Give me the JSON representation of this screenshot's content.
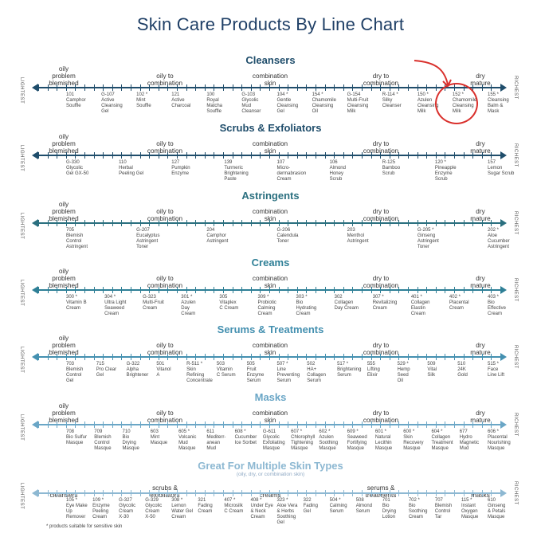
{
  "title": "Skin Care Products By Line Chart",
  "labels": {
    "left": "LIGHTEST",
    "right": "RICHEST"
  },
  "footnote": "* products suitable for sensitive skin",
  "colors": {
    "title": "#1f3f66",
    "cleansers": "#1f4d6b",
    "scrubs": "#1f4d6b",
    "astringents": "#2a6f7f",
    "creams": "#2e7f96",
    "serums": "#4490b0",
    "masks": "#6aa6c6",
    "multi": "#8db8d2",
    "highlight": "#d9302c"
  },
  "sections": [
    {
      "key": "cleansers",
      "title": "Cleansers",
      "cats": [
        "oily\nproblem\nblemished",
        "oily to\ncombination",
        "combination\nskin",
        "dry to\ncombination",
        "dry\nmature"
      ],
      "products": [
        "101\nCamphor\nSouffle",
        "G-107\nActive\nCleansing\nGel",
        "102 *\nMint\nSouffle",
        "121\nActive\nCharcoal",
        "100\nRoyal\nMatcha\nSouffle",
        "G-103\nGlycolic\nMud\nCleanser",
        "104 *\nGentle\nCleansing\nGel",
        "154 *\nChamomile\nCleansing\nOil",
        "G-154\nMulti-Fruit\nCleansing\nMilk",
        "R-114 *\nSilky\nCleanser",
        "150 *\nAzulen\nCleansing\nMilk",
        "152 *\nChamomile\nCleansing\nMilk",
        "155 *\nCleansing\nBalm &\nMask"
      ]
    },
    {
      "key": "scrubs",
      "title": "Scrubs & Exfoliators",
      "cats": [
        "oily\nproblem\nblemished",
        "oily to\ncombination",
        "combination\nskin",
        "dry to\ncombination",
        "dry\nmature"
      ],
      "products": [
        "G-330\nGlycolic\nGel GX-50",
        "110\nHerbal\nPeeling Gel",
        "127\nPumpkin\nEnzyme",
        "139\nTurmeric\nBrightening\nPaste",
        "107\nMicro-\ndermabrasion\nCream",
        "106\nAlmond\nHoney\nScrub",
        "R-125\nBamboo\nScrub",
        "120 *\nPineapple\nEnzyme\nScrub",
        "157\nLemon\nSugar Scrub"
      ]
    },
    {
      "key": "astringents",
      "title": "Astringents",
      "cats": [
        "oily\nproblem\nblemished",
        "oily to\ncombination",
        "combination\nskin",
        "dry to\ncombination",
        "dry\nmature"
      ],
      "products": [
        "705\nBlemish\nControl\nAstringent",
        "G-207\nEucalyptus\nAstringent\nToner",
        "204\nCamphor\nAstringent",
        "G-206\nCalendula\nToner",
        "203\nMenthol\nAstringent",
        "G-205 *\nGinseng\nAstringent\nToner",
        "202 *\nAloe\nCucumber\nAstringent"
      ]
    },
    {
      "key": "creams",
      "title": "Creams",
      "cats": [
        "oily\nproblem\nblemished",
        "oily to\ncombination",
        "combination\nskin",
        "dry to\ncombination",
        "dry\nmature"
      ],
      "products": [
        "300 *\nVitamin B\nCream",
        "304 *\nUltra Light\nSeaweed\nCream",
        "G-323\nMulti-Fruit\nCream",
        "301 *\nAzulen\nDay\nCream",
        "305\nVitaplex\nC Cream",
        "309 *\nProbiotic\nCalming\nCream",
        "303 *\nBio\nHydrating\nCream",
        "302\nCollagen\nDay Cream",
        "307 *\nRevitalizing\nCream",
        "401 *\nCollagen\nElastin\nCream",
        "402 *\nPlacental\nCream",
        "403 *\nBio\nEffective\nCream"
      ]
    },
    {
      "key": "serums",
      "title": "Serums & Treatments",
      "cats": [
        "oily\nproblem\nblemished",
        "oily to\ncombination",
        "combination\nskin",
        "dry to\ncombination",
        "dry\nmature"
      ],
      "products": [
        "703\nBlemish\nControl\nGel",
        "715\nPro Clear\nGel",
        "G-322\nAlpha\nBrightener",
        "501\nVitanol\nA",
        "R-511 *\nSkin\nRefining\nConcentrate",
        "503\nVitamin\nC Serum",
        "505\nFruit\nEnzyme\nSerum",
        "507 *\nLine\nPreventing\nSerum",
        "502\nHA+\nCollagen\nSerum",
        "517 *\nBrightening\nSerum",
        "555\nLifting\nElixir",
        "529 *\nHemp\nSeed\nOil",
        "509\nVital\nSilk",
        "510\n24K\nGold",
        "515 *\nFace\nLine Lift"
      ]
    },
    {
      "key": "masks",
      "title": "Masks",
      "cats": [
        "oily\nproblem\nblemished",
        "oily to\ncombination",
        "combination\nskin",
        "dry to\ncombination",
        "dry\nmature"
      ],
      "products": [
        "708\nBio Sulfur\nMasque",
        "709\nBlemish\nControl\nMasque",
        "710\nBio\nDrying\nMasque",
        "603\nMint\nMasque",
        "605 *\nVolcanic\nMud\nMasque",
        "611\nMediterr-\nanean\nMud",
        "608 *\nCucumber\nIce Sorbet",
        "G-611\nGlycolic\nExfoliating\nMasque",
        "607 *\nChlorophyll\nTightening\nMasque",
        "602 *\nAzulen\nSoothing\nMasque",
        "609 *\nSeaweed\nFortifying\nMasque",
        "601 *\nNatural\nLecithin\nMasque",
        "600 *\nSkin\nRecovery\nMasque",
        "604 *\nCollagen\nTreatment\nMasque",
        "677\nHydro\nMagnetic\nMud",
        "606 *\nPlacental\nNourishing\nMasque"
      ]
    },
    {
      "key": "multi",
      "title": "Great For Multiple Skin Types",
      "subtitle": "(oily, dry, or combination skin)",
      "cats": [
        "cleansers",
        "scrubs &\nexfoliators",
        "creams",
        "serums &\ntreatments",
        "masks"
      ],
      "products": [
        "105 *\nEye Make\nUp\nRemover",
        "109 *\nEnzyme\nPeeling\nCream",
        "G-327\nGlycolic\nCream\nX-30",
        "G-329\nGlycolic\nCream\nX-50",
        "308 *\nLemon\nWater Gel\nCream",
        "321\nFading\nCream",
        "407 *\nMicrosilk\nC Cream",
        "408 *\nUnder Eye\n& Neck\nCream",
        "323 *\nAloe Vera\n& Herbs\nSoothing\nGel",
        "322\nFading\nGel",
        "504 *\nCalming\nSerum",
        "508\nAlmond\nSerum",
        "701\nBio\nDrying\nLotion",
        "702 *\nBio\nSoothing\nCream",
        "707\nBlemish\nControl\nTar",
        "115 *\nInstant\nOxygen\nMasque",
        "610\nGinseng\n& Petals\nMasque"
      ]
    }
  ]
}
